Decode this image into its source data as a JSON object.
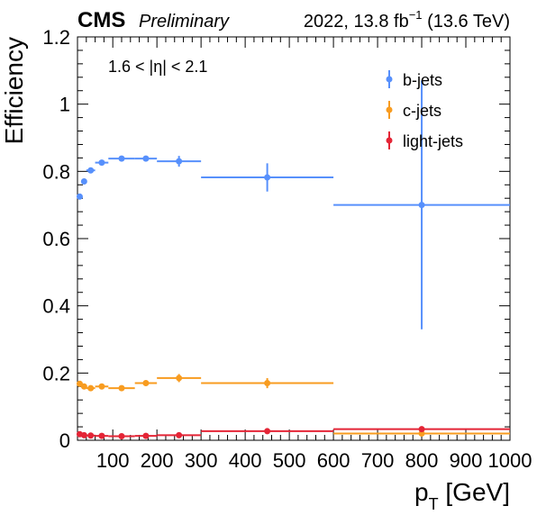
{
  "header": {
    "experiment": "CMS",
    "status": "Preliminary",
    "lumi_main": "2022, 13.8 fb",
    "lumi_sup": "−1",
    "lumi_energy": " (13.6 TeV)"
  },
  "annotation": "1.6 < |η| < 2.1",
  "chart_data": {
    "type": "scatter",
    "xlabel": "p",
    "xlabel_sub": "T",
    "xlabel_unit": " [GeV]",
    "ylabel": "Efficiency",
    "xlim": [
      20,
      1000
    ],
    "ylim": [
      0,
      1.2
    ],
    "x_ticks": [
      100,
      200,
      300,
      400,
      500,
      600,
      700,
      800,
      900,
      1000
    ],
    "x_tick_labels": [
      "100",
      "200",
      "300",
      "400",
      "500",
      "600",
      "700",
      "800",
      "900",
      "1000"
    ],
    "y_ticks": [
      0,
      0.2,
      0.4,
      0.6,
      0.8,
      1,
      1.2
    ],
    "y_tick_labels": [
      "0",
      "0.2",
      "0.4",
      "0.6",
      "0.8",
      "1",
      "1.2"
    ],
    "grid": false,
    "legend_position": "top-right",
    "series": [
      {
        "name": "b-jets",
        "color": "#5790fc",
        "points": [
          {
            "x": 25,
            "xlo": 20,
            "xhi": 30,
            "y": 0.725,
            "yerr": 0.004
          },
          {
            "x": 35,
            "xlo": 30,
            "xhi": 40,
            "y": 0.77,
            "yerr": 0.004
          },
          {
            "x": 50,
            "xlo": 40,
            "xhi": 60,
            "y": 0.803,
            "yerr": 0.004
          },
          {
            "x": 75,
            "xlo": 60,
            "xhi": 90,
            "y": 0.826,
            "yerr": 0.004
          },
          {
            "x": 120,
            "xlo": 90,
            "xhi": 150,
            "y": 0.838,
            "yerr": 0.004
          },
          {
            "x": 175,
            "xlo": 150,
            "xhi": 200,
            "y": 0.838,
            "yerr": 0.006
          },
          {
            "x": 250,
            "xlo": 200,
            "xhi": 300,
            "y": 0.83,
            "yerr": 0.016
          },
          {
            "x": 450,
            "xlo": 300,
            "xhi": 600,
            "y": 0.782,
            "yerr": 0.042
          },
          {
            "x": 800,
            "xlo": 600,
            "xhi": 1000,
            "y": 0.7,
            "yerr": 0.37
          }
        ]
      },
      {
        "name": "c-jets",
        "color": "#f89c20",
        "points": [
          {
            "x": 25,
            "xlo": 20,
            "xhi": 30,
            "y": 0.168,
            "yerr": 0.005
          },
          {
            "x": 35,
            "xlo": 30,
            "xhi": 40,
            "y": 0.16,
            "yerr": 0.005
          },
          {
            "x": 50,
            "xlo": 40,
            "xhi": 60,
            "y": 0.155,
            "yerr": 0.005
          },
          {
            "x": 75,
            "xlo": 60,
            "xhi": 90,
            "y": 0.16,
            "yerr": 0.005
          },
          {
            "x": 120,
            "xlo": 90,
            "xhi": 150,
            "y": 0.155,
            "yerr": 0.005
          },
          {
            "x": 175,
            "xlo": 150,
            "xhi": 200,
            "y": 0.17,
            "yerr": 0.007
          },
          {
            "x": 250,
            "xlo": 200,
            "xhi": 300,
            "y": 0.185,
            "yerr": 0.012
          },
          {
            "x": 450,
            "xlo": 300,
            "xhi": 600,
            "y": 0.17,
            "yerr": 0.015
          },
          {
            "x": 800,
            "xlo": 600,
            "xhi": 1000,
            "y": 0.02,
            "yerr": 0.008
          }
        ]
      },
      {
        "name": "light-jets",
        "color": "#e42536",
        "points": [
          {
            "x": 25,
            "xlo": 20,
            "xhi": 30,
            "y": 0.018,
            "yerr": 0.002
          },
          {
            "x": 35,
            "xlo": 30,
            "xhi": 40,
            "y": 0.015,
            "yerr": 0.002
          },
          {
            "x": 50,
            "xlo": 40,
            "xhi": 60,
            "y": 0.014,
            "yerr": 0.002
          },
          {
            "x": 75,
            "xlo": 60,
            "xhi": 90,
            "y": 0.013,
            "yerr": 0.002
          },
          {
            "x": 120,
            "xlo": 90,
            "xhi": 150,
            "y": 0.012,
            "yerr": 0.002
          },
          {
            "x": 175,
            "xlo": 150,
            "xhi": 200,
            "y": 0.013,
            "yerr": 0.002
          },
          {
            "x": 250,
            "xlo": 200,
            "xhi": 300,
            "y": 0.015,
            "yerr": 0.003
          },
          {
            "x": 450,
            "xlo": 300,
            "xhi": 600,
            "y": 0.027,
            "yerr": 0.004
          },
          {
            "x": 800,
            "xlo": 600,
            "xhi": 1000,
            "y": 0.033,
            "yerr": 0.008
          }
        ]
      }
    ]
  }
}
